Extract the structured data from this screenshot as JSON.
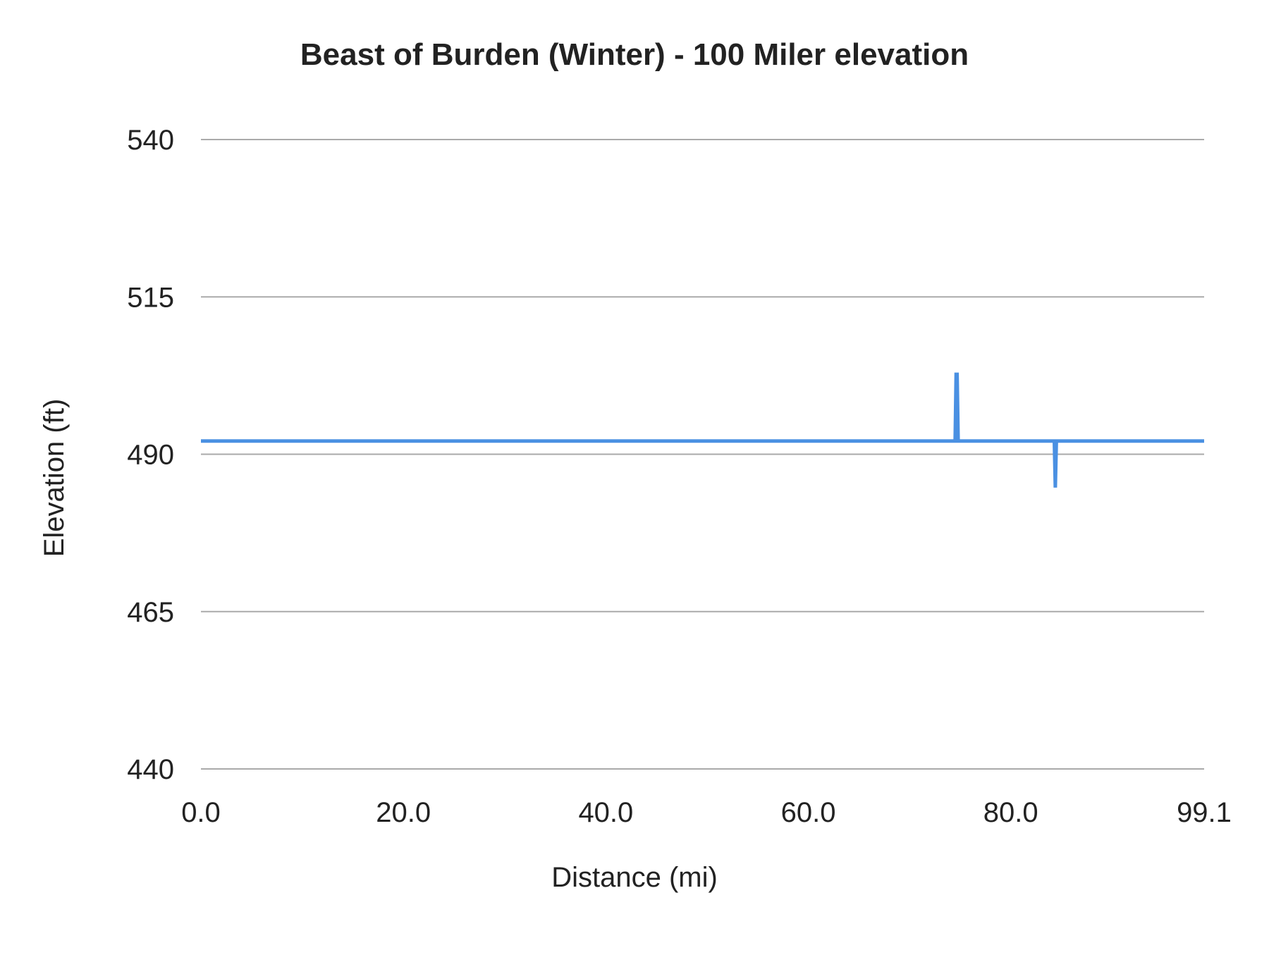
{
  "chart_data": {
    "type": "line",
    "title": "Beast of Burden (Winter) - 100 Miler elevation",
    "xlabel": "Distance (mi)",
    "ylabel": "Elevation (ft)",
    "xlim": [
      0.0,
      99.1
    ],
    "ylim": [
      440,
      540
    ],
    "xticks": [
      "0.0",
      "20.0",
      "40.0",
      "60.0",
      "80.0",
      "99.1"
    ],
    "yticks": [
      "540",
      "515",
      "490",
      "465",
      "440"
    ],
    "grid": true,
    "legend": "none",
    "series": [
      {
        "color": "#4a90e2",
        "x": [
          0.0,
          74.5,
          74.6,
          74.7,
          74.8,
          84.3,
          84.4,
          84.5,
          99.1
        ],
        "y": [
          492.1,
          492.1,
          502.7,
          502.7,
          492.1,
          492.1,
          484.7,
          492.1,
          492.1
        ]
      }
    ]
  }
}
